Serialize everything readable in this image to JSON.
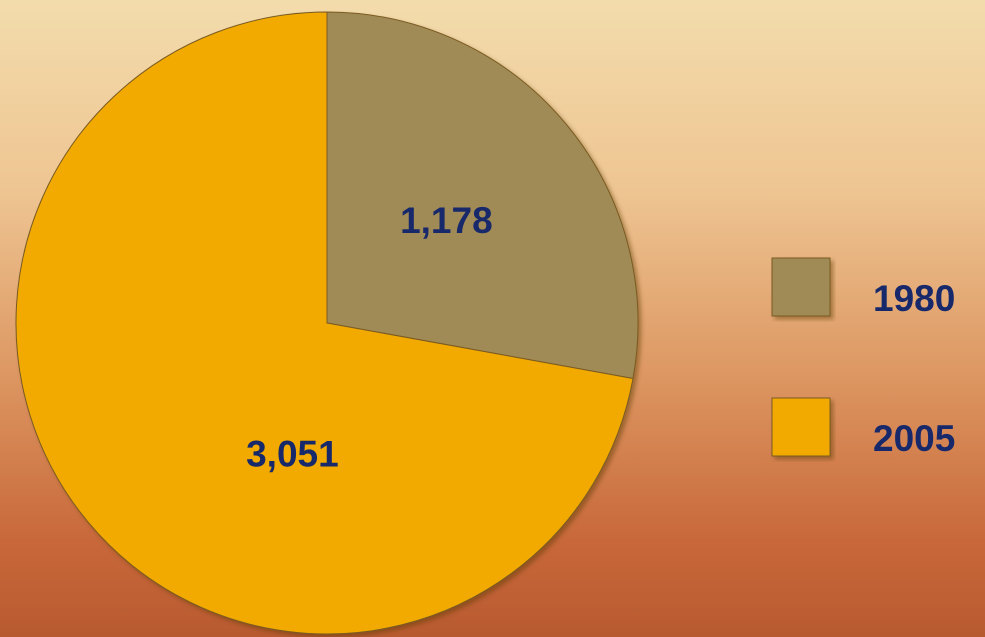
{
  "chart_data": {
    "type": "pie",
    "categories": [
      "1980",
      "2005"
    ],
    "values": [
      1178,
      3051
    ],
    "value_labels": [
      "1,178",
      "3,051"
    ],
    "colors": [
      "#a08a55",
      "#f2aa00"
    ],
    "legend": "right"
  }
}
